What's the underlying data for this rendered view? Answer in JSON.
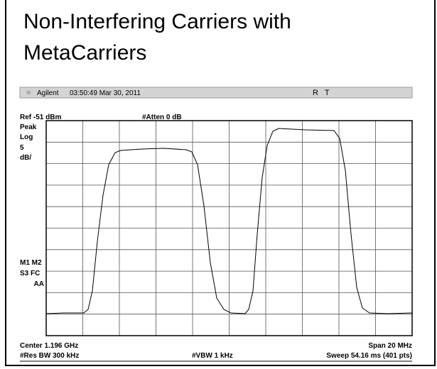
{
  "slide": {
    "title": "Non-Interfering Carriers with MetaCarriers"
  },
  "analyzer": {
    "brand": "Agilent",
    "timestamp": "03:50:49  Mar 30, 2011",
    "status": "R   T",
    "ref_level": "Ref -51 dBm",
    "attenuation": "#Atten 0 dB",
    "left_labels": [
      "Peak",
      "Log",
      "5",
      "dB/"
    ],
    "markers": [
      "M1 M2",
      "S3 FC",
      "AA"
    ],
    "center": "Center 1.196 GHz",
    "span": "Span 20 MHz",
    "rbw": "#Res BW 300 kHz",
    "vbw": "#VBW 1 kHz",
    "sweep": "Sweep 54.16 ms (401 pts)"
  }
}
